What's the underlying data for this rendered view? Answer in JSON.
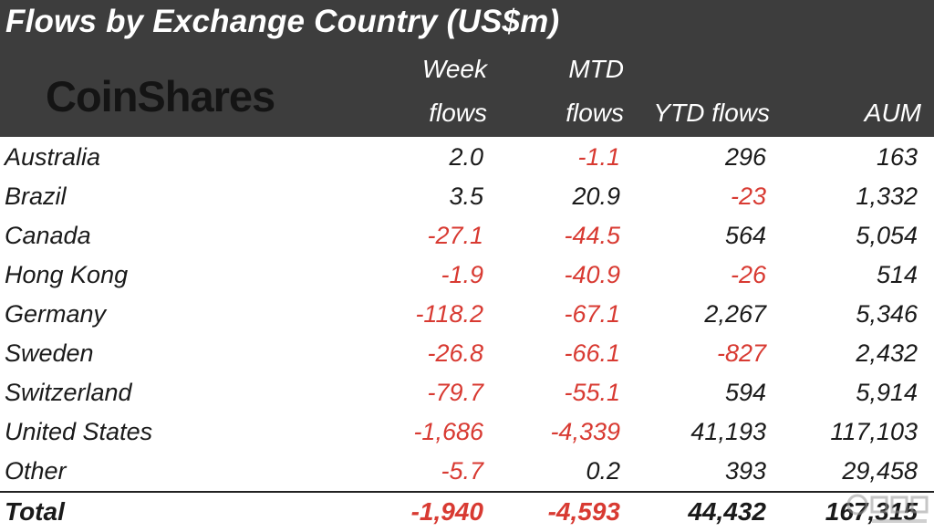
{
  "title": "Flows by Exchange Country (US$m)",
  "logo_text": "CoinShares",
  "columns": {
    "week_line1": "Week",
    "week_line2": "flows",
    "mtd_line1": "MTD",
    "mtd_line2": "flows",
    "ytd": "YTD flows",
    "aum": "AUM"
  },
  "rows": [
    {
      "country": "Australia",
      "week": "2.0",
      "mtd": "-1.1",
      "ytd": "296",
      "aum": "163"
    },
    {
      "country": "Brazil",
      "week": "3.5",
      "mtd": "20.9",
      "ytd": "-23",
      "aum": "1,332"
    },
    {
      "country": "Canada",
      "week": "-27.1",
      "mtd": "-44.5",
      "ytd": "564",
      "aum": "5,054"
    },
    {
      "country": "Hong Kong",
      "week": "-1.9",
      "mtd": "-40.9",
      "ytd": "-26",
      "aum": "514"
    },
    {
      "country": "Germany",
      "week": "-118.2",
      "mtd": "-67.1",
      "ytd": "2,267",
      "aum": "5,346"
    },
    {
      "country": "Sweden",
      "week": "-26.8",
      "mtd": "-66.1",
      "ytd": "-827",
      "aum": "2,432"
    },
    {
      "country": "Switzerland",
      "week": "-79.7",
      "mtd": "-55.1",
      "ytd": "594",
      "aum": "5,914"
    },
    {
      "country": "United States",
      "week": "-1,686",
      "mtd": "-4,339",
      "ytd": "41,193",
      "aum": "117,103"
    },
    {
      "country": "Other",
      "week": "-5.7",
      "mtd": "0.2",
      "ytd": "393",
      "aum": "29,458"
    }
  ],
  "total": {
    "label": "Total",
    "week": "-1,940",
    "mtd": "-4,593",
    "ytd": "44,432",
    "aum": "167,315"
  },
  "colors": {
    "header_bg": "#3d3d3d",
    "negative": "#d83a32",
    "text": "#1a1a1a"
  }
}
